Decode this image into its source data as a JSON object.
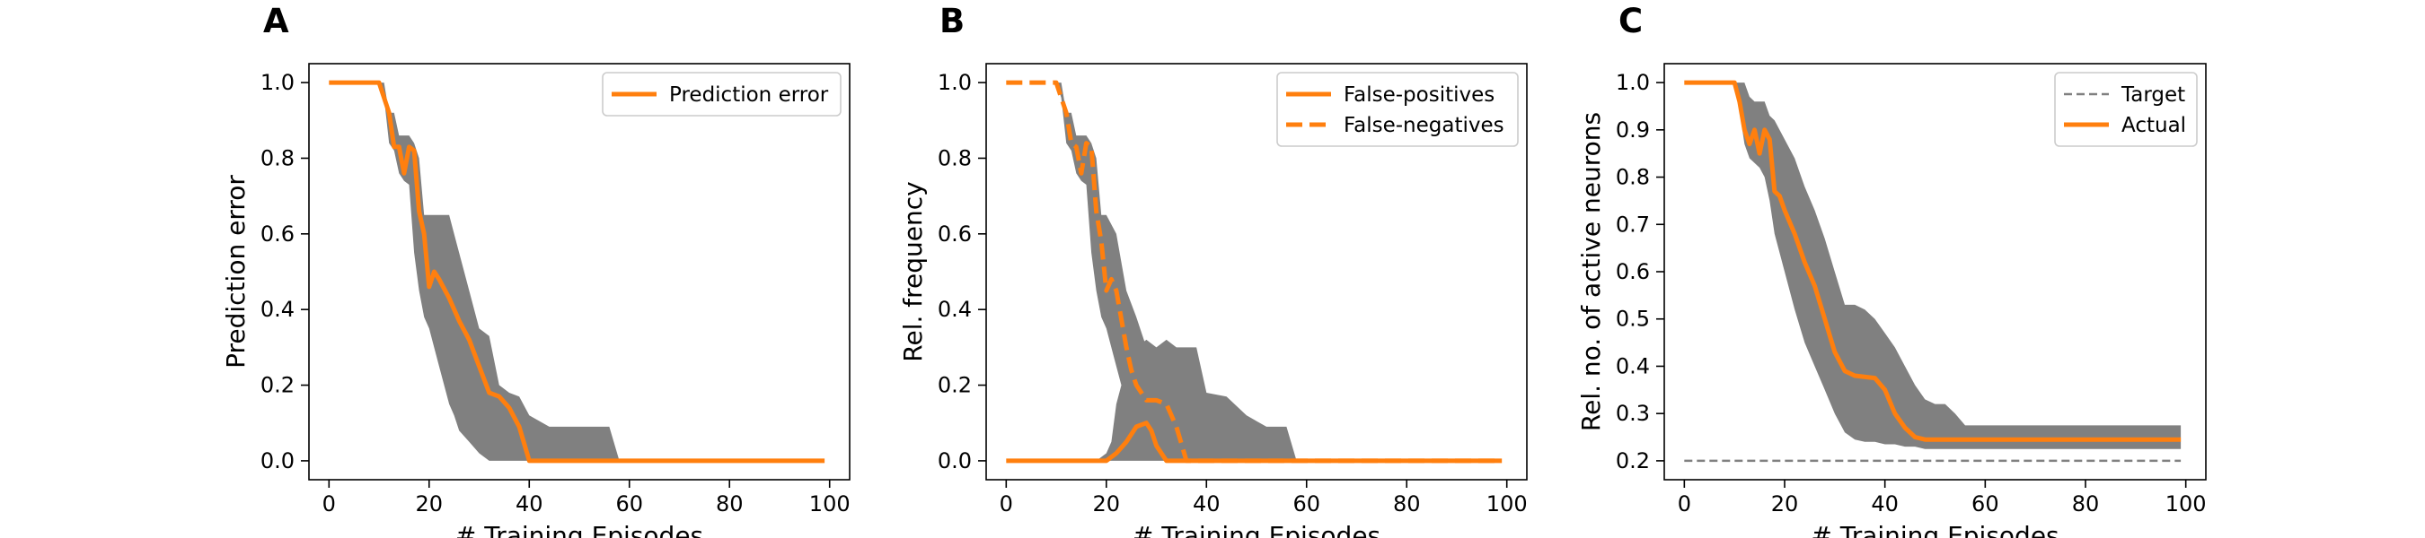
{
  "chart_data": [
    {
      "type": "line",
      "panel": "A",
      "xlabel": "# Training Episodes",
      "ylabel": "Prediction error",
      "xlim": [
        -4,
        104
      ],
      "ylim": [
        -0.05,
        1.05
      ],
      "xticks": [
        0,
        20,
        40,
        60,
        80,
        100
      ],
      "yticks": [
        0.0,
        0.2,
        0.4,
        0.6,
        0.8,
        1.0
      ],
      "ytick_labels": [
        "0.0",
        "0.2",
        "0.4",
        "0.6",
        "0.8",
        "1.0"
      ],
      "legend": "top-right",
      "series": [
        {
          "name": "Prediction error",
          "style": "solid",
          "x": [
            0,
            10,
            12,
            13,
            14,
            15,
            16,
            17,
            18,
            19,
            20,
            21,
            22,
            24,
            26,
            28,
            30,
            32,
            34,
            36,
            38,
            40,
            42,
            50,
            60,
            70,
            80,
            90,
            99
          ],
          "values": [
            1.0,
            1.0,
            0.92,
            0.83,
            0.83,
            0.76,
            0.83,
            0.82,
            0.66,
            0.6,
            0.46,
            0.5,
            0.48,
            0.43,
            0.37,
            0.32,
            0.25,
            0.18,
            0.17,
            0.14,
            0.09,
            0.0,
            0.0,
            0.0,
            0.0,
            0.0,
            0.0,
            0.0,
            0.0
          ]
        }
      ],
      "bands": [
        {
          "x": [
            0,
            10,
            11,
            12,
            13,
            14,
            15,
            16,
            17,
            18,
            19,
            20,
            22,
            24,
            25,
            26,
            28,
            30,
            32,
            34,
            36,
            38,
            40,
            44,
            48,
            52,
            56,
            58,
            99
          ],
          "lower": [
            1.0,
            1.0,
            0.96,
            0.84,
            0.82,
            0.76,
            0.74,
            0.73,
            0.55,
            0.45,
            0.38,
            0.35,
            0.25,
            0.15,
            0.12,
            0.08,
            0.05,
            0.02,
            0.0,
            0.0,
            0.0,
            0.0,
            0.0,
            0.0,
            0.0,
            0.0,
            0.0,
            0.0,
            0.0
          ],
          "upper": [
            1.0,
            1.0,
            1.0,
            0.92,
            0.92,
            0.86,
            0.86,
            0.86,
            0.84,
            0.8,
            0.65,
            0.65,
            0.65,
            0.65,
            0.6,
            0.55,
            0.45,
            0.35,
            0.33,
            0.2,
            0.18,
            0.17,
            0.12,
            0.09,
            0.09,
            0.09,
            0.09,
            0.0,
            0.0
          ]
        }
      ]
    },
    {
      "type": "line",
      "panel": "B",
      "xlabel": "# Training Episodes",
      "ylabel": "Rel. frequency",
      "xlim": [
        -4,
        104
      ],
      "ylim": [
        -0.05,
        1.05
      ],
      "xticks": [
        0,
        20,
        40,
        60,
        80,
        100
      ],
      "yticks": [
        0.0,
        0.2,
        0.4,
        0.6,
        0.8,
        1.0
      ],
      "ytick_labels": [
        "0.0",
        "0.2",
        "0.4",
        "0.6",
        "0.8",
        "1.0"
      ],
      "legend": "top-right",
      "series": [
        {
          "name": "False-positives",
          "style": "solid",
          "x": [
            0,
            20,
            22,
            24,
            26,
            28,
            29,
            30,
            31,
            32,
            33,
            34,
            40,
            60,
            80,
            99
          ],
          "values": [
            0.0,
            0.0,
            0.02,
            0.05,
            0.09,
            0.1,
            0.08,
            0.04,
            0.02,
            0.0,
            0.0,
            0.0,
            0.0,
            0.0,
            0.0,
            0.0
          ]
        },
        {
          "name": "False-negatives",
          "style": "dashed",
          "x": [
            0,
            10,
            12,
            13,
            14,
            15,
            16,
            17,
            18,
            19,
            20,
            21,
            22,
            24,
            25,
            26,
            28,
            30,
            32,
            34,
            36,
            38,
            50,
            99
          ],
          "values": [
            1.0,
            1.0,
            0.92,
            0.84,
            0.83,
            0.76,
            0.84,
            0.83,
            0.66,
            0.58,
            0.45,
            0.48,
            0.45,
            0.3,
            0.24,
            0.2,
            0.16,
            0.16,
            0.15,
            0.09,
            0.0,
            0.0,
            0.0,
            0.0
          ]
        }
      ],
      "bands": [
        {
          "x": [
            0,
            10,
            11,
            12,
            13,
            14,
            15,
            16,
            17,
            18,
            19,
            20,
            22,
            24,
            26,
            28,
            30,
            32,
            34,
            36,
            38,
            99
          ],
          "lower": [
            1.0,
            1.0,
            0.96,
            0.84,
            0.82,
            0.76,
            0.74,
            0.73,
            0.55,
            0.45,
            0.38,
            0.35,
            0.25,
            0.15,
            0.08,
            0.05,
            0.02,
            0.0,
            0.0,
            0.0,
            0.0,
            0.0
          ],
          "upper": [
            1.0,
            1.0,
            1.0,
            0.92,
            0.92,
            0.86,
            0.86,
            0.86,
            0.84,
            0.8,
            0.65,
            0.65,
            0.6,
            0.45,
            0.38,
            0.3,
            0.28,
            0.1,
            0.02,
            0.0,
            0.0,
            0.0
          ]
        },
        {
          "x": [
            0,
            18,
            20,
            21,
            22,
            24,
            26,
            28,
            30,
            32,
            34,
            36,
            38,
            40,
            44,
            48,
            52,
            56,
            58,
            99
          ],
          "lower": [
            0.0,
            0.0,
            0.0,
            0.0,
            0.0,
            0.0,
            0.0,
            0.0,
            0.0,
            0.0,
            0.0,
            0.0,
            0.0,
            0.0,
            0.0,
            0.0,
            0.0,
            0.0,
            0.0,
            0.0
          ],
          "upper": [
            0.0,
            0.0,
            0.02,
            0.05,
            0.15,
            0.25,
            0.3,
            0.32,
            0.3,
            0.32,
            0.3,
            0.3,
            0.3,
            0.18,
            0.17,
            0.12,
            0.09,
            0.09,
            0.0,
            0.0
          ]
        }
      ]
    },
    {
      "type": "line",
      "panel": "C",
      "xlabel": "# Training Episodes",
      "ylabel": "Rel. no. of active neurons",
      "xlim": [
        -4,
        104
      ],
      "ylim": [
        0.16,
        1.04
      ],
      "xticks": [
        0,
        20,
        40,
        60,
        80,
        100
      ],
      "yticks": [
        0.2,
        0.3,
        0.4,
        0.5,
        0.6,
        0.7,
        0.8,
        0.9,
        1.0
      ],
      "ytick_labels": [
        "0.2",
        "0.3",
        "0.4",
        "0.5",
        "0.6",
        "0.7",
        "0.8",
        "0.9",
        "1.0"
      ],
      "legend": "top-right",
      "series": [
        {
          "name": "Target",
          "style": "dashed-thin",
          "x": [
            0,
            99
          ],
          "values": [
            0.2,
            0.2
          ]
        },
        {
          "name": "Actual",
          "style": "solid",
          "x": [
            0,
            10,
            11,
            12,
            13,
            14,
            15,
            16,
            17,
            18,
            19,
            20,
            22,
            24,
            26,
            28,
            30,
            32,
            34,
            38,
            40,
            42,
            44,
            46,
            48,
            50,
            60,
            80,
            99
          ],
          "values": [
            1.0,
            1.0,
            0.96,
            0.9,
            0.87,
            0.9,
            0.85,
            0.9,
            0.88,
            0.77,
            0.76,
            0.73,
            0.68,
            0.62,
            0.57,
            0.5,
            0.43,
            0.39,
            0.38,
            0.375,
            0.35,
            0.3,
            0.27,
            0.25,
            0.245,
            0.245,
            0.245,
            0.245,
            0.245
          ]
        }
      ],
      "bands": [
        {
          "x": [
            0,
            10,
            11,
            12,
            13,
            14,
            15,
            16,
            17,
            18,
            20,
            22,
            24,
            26,
            28,
            30,
            32,
            34,
            36,
            38,
            40,
            42,
            44,
            46,
            48,
            50,
            52,
            54,
            56,
            60,
            80,
            99
          ],
          "lower": [
            1.0,
            1.0,
            0.94,
            0.87,
            0.84,
            0.83,
            0.82,
            0.8,
            0.75,
            0.68,
            0.6,
            0.52,
            0.45,
            0.4,
            0.35,
            0.3,
            0.26,
            0.245,
            0.24,
            0.24,
            0.235,
            0.235,
            0.23,
            0.23,
            0.225,
            0.225,
            0.225,
            0.225,
            0.225,
            0.225,
            0.225,
            0.225
          ],
          "upper": [
            1.0,
            1.0,
            1.0,
            1.0,
            0.97,
            0.96,
            0.96,
            0.96,
            0.93,
            0.92,
            0.88,
            0.84,
            0.78,
            0.73,
            0.67,
            0.6,
            0.53,
            0.53,
            0.52,
            0.5,
            0.47,
            0.44,
            0.4,
            0.36,
            0.33,
            0.32,
            0.32,
            0.3,
            0.275,
            0.275,
            0.275,
            0.275
          ]
        }
      ]
    }
  ]
}
